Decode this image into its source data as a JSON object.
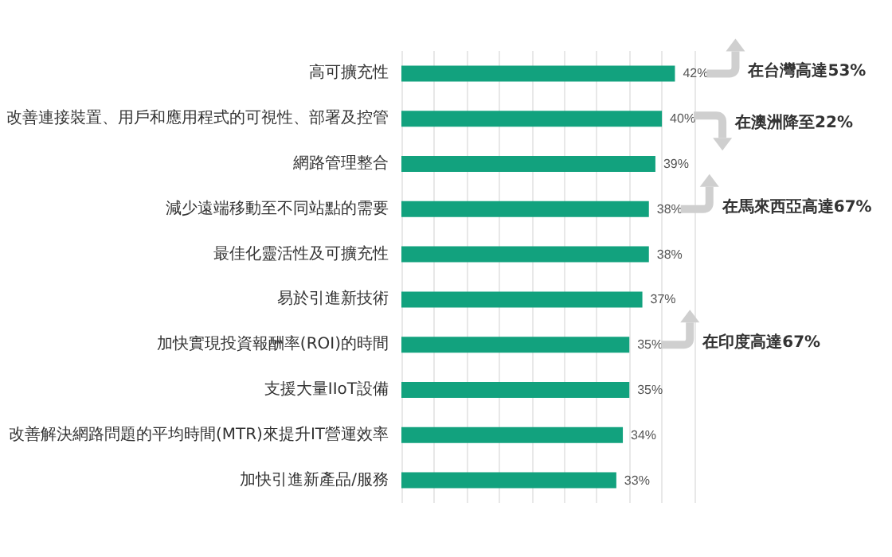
{
  "chart_data": {
    "type": "bar",
    "orientation": "horizontal",
    "categories": [
      "高可擴充性",
      "改善連接裝置、用戶和應用程式的可視性、部署及控管",
      "網路管理整合",
      "減少遠端移動至不同站點的需要",
      "最佳化靈活性及可擴充性",
      "易於引進新技術",
      "加快實現投資報酬率(ROI)的時間",
      "支援大量IIoT設備",
      "改善解決網路問題的平均時間(MTR)來提升IT營運效率",
      "加快引進新產品/服務"
    ],
    "values": [
      42,
      40,
      39,
      38,
      38,
      37,
      35,
      35,
      34,
      33
    ],
    "value_labels": [
      "42%",
      "40%",
      "39%",
      "38%",
      "38%",
      "37%",
      "35%",
      "35%",
      "34%",
      "33%"
    ],
    "color": "#12a27e",
    "xlim": [
      0,
      45
    ],
    "xticks": [
      {
        "value": 0,
        "label": null
      },
      {
        "value": 5,
        "label": null
      },
      {
        "value": 10,
        "label": null
      },
      {
        "value": 15,
        "label": null
      },
      {
        "value": 20,
        "label": null
      },
      {
        "value": 25,
        "label": null
      },
      {
        "value": 30,
        "label": null
      },
      {
        "value": 35,
        "label": null
      },
      {
        "value": 40,
        "label": null
      },
      {
        "value": 45,
        "label": null
      }
    ],
    "grid": "x",
    "tick_labels": "y",
    "annotations": [
      "在台灣高達53%",
      "在澳洲降至22%",
      "在馬來西亞高達67%",
      "在印度高達67%"
    ]
  }
}
